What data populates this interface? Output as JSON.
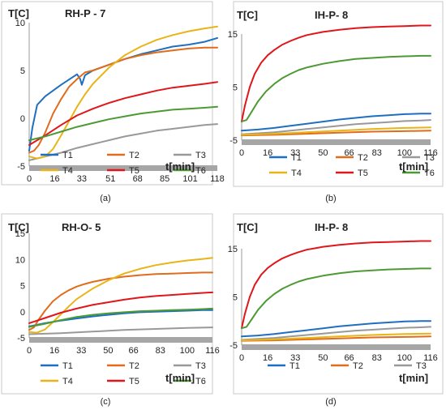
{
  "figure": {
    "captions": [
      "(a)",
      "(b)",
      "(c)",
      "(d)"
    ]
  },
  "chart_data": [
    {
      "type": "line",
      "title": "RH-P - 7",
      "ylabel": "T[C]",
      "xlabel": "t[min]",
      "ylim": [
        -5,
        10
      ],
      "yticks": [
        -5,
        0,
        5,
        10
      ],
      "xlim": [
        0,
        118
      ],
      "xticks": [
        0,
        16,
        33,
        51,
        68,
        85,
        101,
        118
      ],
      "series": [
        {
          "name": "T1",
          "color": "#1f6fc0",
          "x": [
            0,
            2,
            5,
            10,
            20,
            30,
            32,
            33,
            35,
            40,
            50,
            60,
            70,
            80,
            90,
            100,
            110,
            118
          ],
          "y": [
            -3.4,
            -1.0,
            1.4,
            2.3,
            3.5,
            4.6,
            4.1,
            3.5,
            4.5,
            5.0,
            5.6,
            6.2,
            6.7,
            7.1,
            7.5,
            7.7,
            8.0,
            8.4
          ]
        },
        {
          "name": "T2",
          "color": "#e06c1c",
          "x": [
            0,
            3,
            6,
            10,
            15,
            20,
            25,
            30,
            35,
            40,
            50,
            60,
            70,
            80,
            90,
            100,
            110,
            118
          ],
          "y": [
            -3.6,
            -3.4,
            -2.8,
            -1.5,
            0.5,
            2.0,
            3.3,
            4.1,
            4.8,
            5.0,
            5.6,
            6.2,
            6.6,
            6.9,
            7.1,
            7.3,
            7.4,
            7.4
          ]
        },
        {
          "name": "T3",
          "color": "#999999",
          "x": [
            0,
            10,
            20,
            30,
            40,
            50,
            60,
            70,
            80,
            90,
            100,
            110,
            118
          ],
          "y": [
            -4.4,
            -4.0,
            -3.6,
            -3.1,
            -2.7,
            -2.3,
            -1.9,
            -1.6,
            -1.3,
            -1.1,
            -0.9,
            -0.7,
            -0.6
          ]
        },
        {
          "name": "T4",
          "color": "#e8b418",
          "x": [
            0,
            5,
            10,
            15,
            20,
            25,
            30,
            35,
            40,
            50,
            60,
            70,
            80,
            90,
            100,
            110,
            118
          ],
          "y": [
            -4.0,
            -4.2,
            -4.0,
            -3.2,
            -1.8,
            -0.3,
            1.2,
            2.5,
            3.6,
            5.3,
            6.6,
            7.5,
            8.2,
            8.7,
            9.1,
            9.4,
            9.6
          ]
        },
        {
          "name": "T5",
          "color": "#e0161a",
          "x": [
            0,
            10,
            20,
            30,
            40,
            50,
            60,
            70,
            80,
            90,
            100,
            110,
            118
          ],
          "y": [
            -2.8,
            -1.8,
            -0.7,
            0.3,
            1.0,
            1.6,
            2.1,
            2.5,
            2.9,
            3.2,
            3.4,
            3.6,
            3.8
          ]
        },
        {
          "name": "T6",
          "color": "#4d9a34",
          "x": [
            0,
            10,
            20,
            30,
            40,
            50,
            60,
            70,
            80,
            90,
            100,
            110,
            118
          ],
          "y": [
            -2.3,
            -1.9,
            -1.4,
            -0.9,
            -0.5,
            -0.1,
            0.2,
            0.5,
            0.7,
            0.9,
            1.0,
            1.1,
            1.2
          ]
        }
      ]
    },
    {
      "type": "line",
      "title": "IH-P- 8",
      "ylabel": "T[C]",
      "xlabel": "t[min]",
      "ylim": [
        -5,
        15
      ],
      "yticks": [
        -5,
        5,
        15
      ],
      "xlim": [
        0,
        116
      ],
      "xticks": [
        0,
        16,
        33,
        50,
        66,
        83,
        100,
        116
      ],
      "series": [
        {
          "name": "T1",
          "color": "#1f6fc0",
          "x": [
            0,
            10,
            20,
            30,
            40,
            50,
            60,
            70,
            80,
            90,
            100,
            110,
            116
          ],
          "y": [
            -3.2,
            -3.0,
            -2.7,
            -2.3,
            -1.9,
            -1.5,
            -1.1,
            -0.8,
            -0.5,
            -0.3,
            -0.1,
            0.0,
            0.0
          ]
        },
        {
          "name": "T2",
          "color": "#e06c1c",
          "x": [
            0,
            20,
            40,
            60,
            80,
            100,
            116
          ],
          "y": [
            -4.1,
            -4.0,
            -3.8,
            -3.6,
            -3.4,
            -3.3,
            -3.2
          ]
        },
        {
          "name": "T3",
          "color": "#999999",
          "x": [
            0,
            10,
            20,
            30,
            40,
            50,
            60,
            70,
            80,
            90,
            100,
            110,
            116
          ],
          "y": [
            -3.9,
            -3.7,
            -3.5,
            -3.2,
            -2.9,
            -2.6,
            -2.3,
            -2.0,
            -1.8,
            -1.6,
            -1.4,
            -1.3,
            -1.2
          ]
        },
        {
          "name": "T4",
          "color": "#e8b418",
          "x": [
            0,
            20,
            40,
            60,
            80,
            100,
            116
          ],
          "y": [
            -4.0,
            -3.8,
            -3.5,
            -3.2,
            -2.9,
            -2.7,
            -2.6
          ]
        },
        {
          "name": "T5",
          "color": "#e0161a",
          "x": [
            0,
            2,
            5,
            8,
            12,
            16,
            20,
            25,
            30,
            35,
            40,
            50,
            60,
            70,
            80,
            90,
            100,
            110,
            116
          ],
          "y": [
            -1.5,
            1.5,
            5.0,
            7.5,
            9.6,
            11.0,
            12.0,
            13.0,
            13.7,
            14.3,
            14.8,
            15.4,
            15.8,
            16.1,
            16.3,
            16.4,
            16.5,
            16.6,
            16.6
          ]
        },
        {
          "name": "T6",
          "color": "#4d9a34",
          "x": [
            0,
            3,
            6,
            10,
            15,
            20,
            25,
            30,
            35,
            40,
            50,
            60,
            70,
            80,
            90,
            100,
            110,
            116
          ],
          "y": [
            -1.5,
            -1.2,
            0.3,
            2.3,
            4.2,
            5.6,
            6.7,
            7.5,
            8.2,
            8.7,
            9.4,
            9.9,
            10.3,
            10.5,
            10.7,
            10.8,
            10.9,
            10.9
          ]
        }
      ]
    },
    {
      "type": "line",
      "title": "RH-O- 5",
      "ylabel": "T[C]",
      "xlabel": "t[min]",
      "ylim": [
        -5,
        15
      ],
      "yticks": [
        -5,
        0,
        5,
        10,
        15
      ],
      "xlim": [
        0,
        116
      ],
      "xticks": [
        0,
        16,
        33,
        50,
        66,
        83,
        100,
        116
      ],
      "series": [
        {
          "name": "T1",
          "color": "#1f6fc0",
          "x": [
            0,
            10,
            20,
            30,
            40,
            50,
            60,
            70,
            80,
            90,
            100,
            110,
            116
          ],
          "y": [
            -2.8,
            -2.2,
            -1.7,
            -1.3,
            -0.9,
            -0.6,
            -0.3,
            -0.1,
            0.0,
            0.1,
            0.2,
            0.3,
            0.3
          ]
        },
        {
          "name": "T2",
          "color": "#e06c1c",
          "x": [
            0,
            3,
            6,
            10,
            15,
            20,
            25,
            30,
            35,
            40,
            50,
            60,
            70,
            80,
            90,
            100,
            110,
            116
          ],
          "y": [
            -3.5,
            -3.0,
            -1.5,
            0.2,
            2.0,
            3.2,
            4.1,
            4.8,
            5.3,
            5.7,
            6.3,
            6.7,
            7.0,
            7.2,
            7.3,
            7.4,
            7.5,
            7.5
          ]
        },
        {
          "name": "T3",
          "color": "#999999",
          "x": [
            0,
            20,
            40,
            60,
            80,
            100,
            116
          ],
          "y": [
            -4.3,
            -4.1,
            -3.8,
            -3.5,
            -3.3,
            -3.1,
            -3.0
          ]
        },
        {
          "name": "T4",
          "color": "#e8b418",
          "x": [
            0,
            5,
            10,
            15,
            20,
            25,
            30,
            40,
            50,
            60,
            70,
            80,
            90,
            100,
            110,
            116
          ],
          "y": [
            -3.9,
            -4.0,
            -3.4,
            -2.0,
            -0.5,
            1.0,
            2.4,
            4.4,
            6.0,
            7.3,
            8.2,
            8.9,
            9.4,
            9.8,
            10.1,
            10.3
          ]
        },
        {
          "name": "T5",
          "color": "#e0161a",
          "x": [
            0,
            10,
            20,
            30,
            40,
            50,
            60,
            70,
            80,
            90,
            100,
            110,
            116
          ],
          "y": [
            -2.2,
            -1.2,
            -0.2,
            0.6,
            1.3,
            1.8,
            2.3,
            2.7,
            3.0,
            3.2,
            3.4,
            3.6,
            3.7
          ]
        },
        {
          "name": "T6",
          "color": "#4d9a34",
          "x": [
            0,
            10,
            20,
            30,
            40,
            50,
            60,
            70,
            80,
            90,
            100,
            110,
            116
          ],
          "y": [
            -2.9,
            -2.3,
            -1.6,
            -1.0,
            -0.6,
            -0.3,
            -0.1,
            0.1,
            0.2,
            0.3,
            0.4,
            0.5,
            0.6
          ]
        }
      ]
    },
    {
      "type": "line",
      "title": "IH-P- 8",
      "ylabel": "T[C]",
      "xlabel": "t[min]",
      "ylim": [
        -5,
        15
      ],
      "yticks": [
        -5,
        5,
        15
      ],
      "xlim": [
        0,
        116
      ],
      "xticks": [
        0,
        16,
        33,
        50,
        66,
        83,
        100,
        116
      ],
      "series": [
        {
          "name": "T1",
          "color": "#1f6fc0",
          "x": [
            0,
            10,
            20,
            30,
            40,
            50,
            60,
            70,
            80,
            90,
            100,
            110,
            116
          ],
          "y": [
            -3.2,
            -3.0,
            -2.7,
            -2.3,
            -1.9,
            -1.5,
            -1.1,
            -0.8,
            -0.5,
            -0.3,
            -0.1,
            0.0,
            0.0
          ]
        },
        {
          "name": "T2",
          "color": "#e06c1c",
          "x": [
            0,
            20,
            40,
            60,
            80,
            100,
            116
          ],
          "y": [
            -4.1,
            -4.0,
            -3.8,
            -3.6,
            -3.4,
            -3.3,
            -3.2
          ]
        },
        {
          "name": "T3",
          "color": "#999999",
          "x": [
            0,
            10,
            20,
            30,
            40,
            50,
            60,
            70,
            80,
            90,
            100,
            110,
            116
          ],
          "y": [
            -3.9,
            -3.7,
            -3.5,
            -3.2,
            -2.9,
            -2.6,
            -2.3,
            -2.0,
            -1.8,
            -1.6,
            -1.4,
            -1.3,
            -1.2
          ]
        },
        {
          "color": "#e8b418",
          "x": [
            0,
            20,
            40,
            60,
            80,
            100,
            116
          ],
          "y": [
            -4.0,
            -3.8,
            -3.5,
            -3.2,
            -2.9,
            -2.7,
            -2.6
          ]
        },
        {
          "color": "#e0161a",
          "x": [
            0,
            2,
            5,
            8,
            12,
            16,
            20,
            25,
            30,
            35,
            40,
            50,
            60,
            70,
            80,
            90,
            100,
            110,
            116
          ],
          "y": [
            -1.5,
            1.5,
            5.0,
            7.5,
            9.6,
            11.0,
            12.0,
            13.0,
            13.7,
            14.3,
            14.8,
            15.4,
            15.8,
            16.1,
            16.3,
            16.4,
            16.5,
            16.6,
            16.6
          ]
        },
        {
          "color": "#4d9a34",
          "x": [
            0,
            3,
            6,
            10,
            15,
            20,
            25,
            30,
            35,
            40,
            50,
            60,
            70,
            80,
            90,
            100,
            110,
            116
          ],
          "y": [
            -1.5,
            -1.2,
            0.3,
            2.3,
            4.2,
            5.6,
            6.7,
            7.5,
            8.2,
            8.7,
            9.4,
            9.9,
            10.3,
            10.5,
            10.7,
            10.8,
            10.9,
            10.9
          ]
        }
      ]
    }
  ]
}
